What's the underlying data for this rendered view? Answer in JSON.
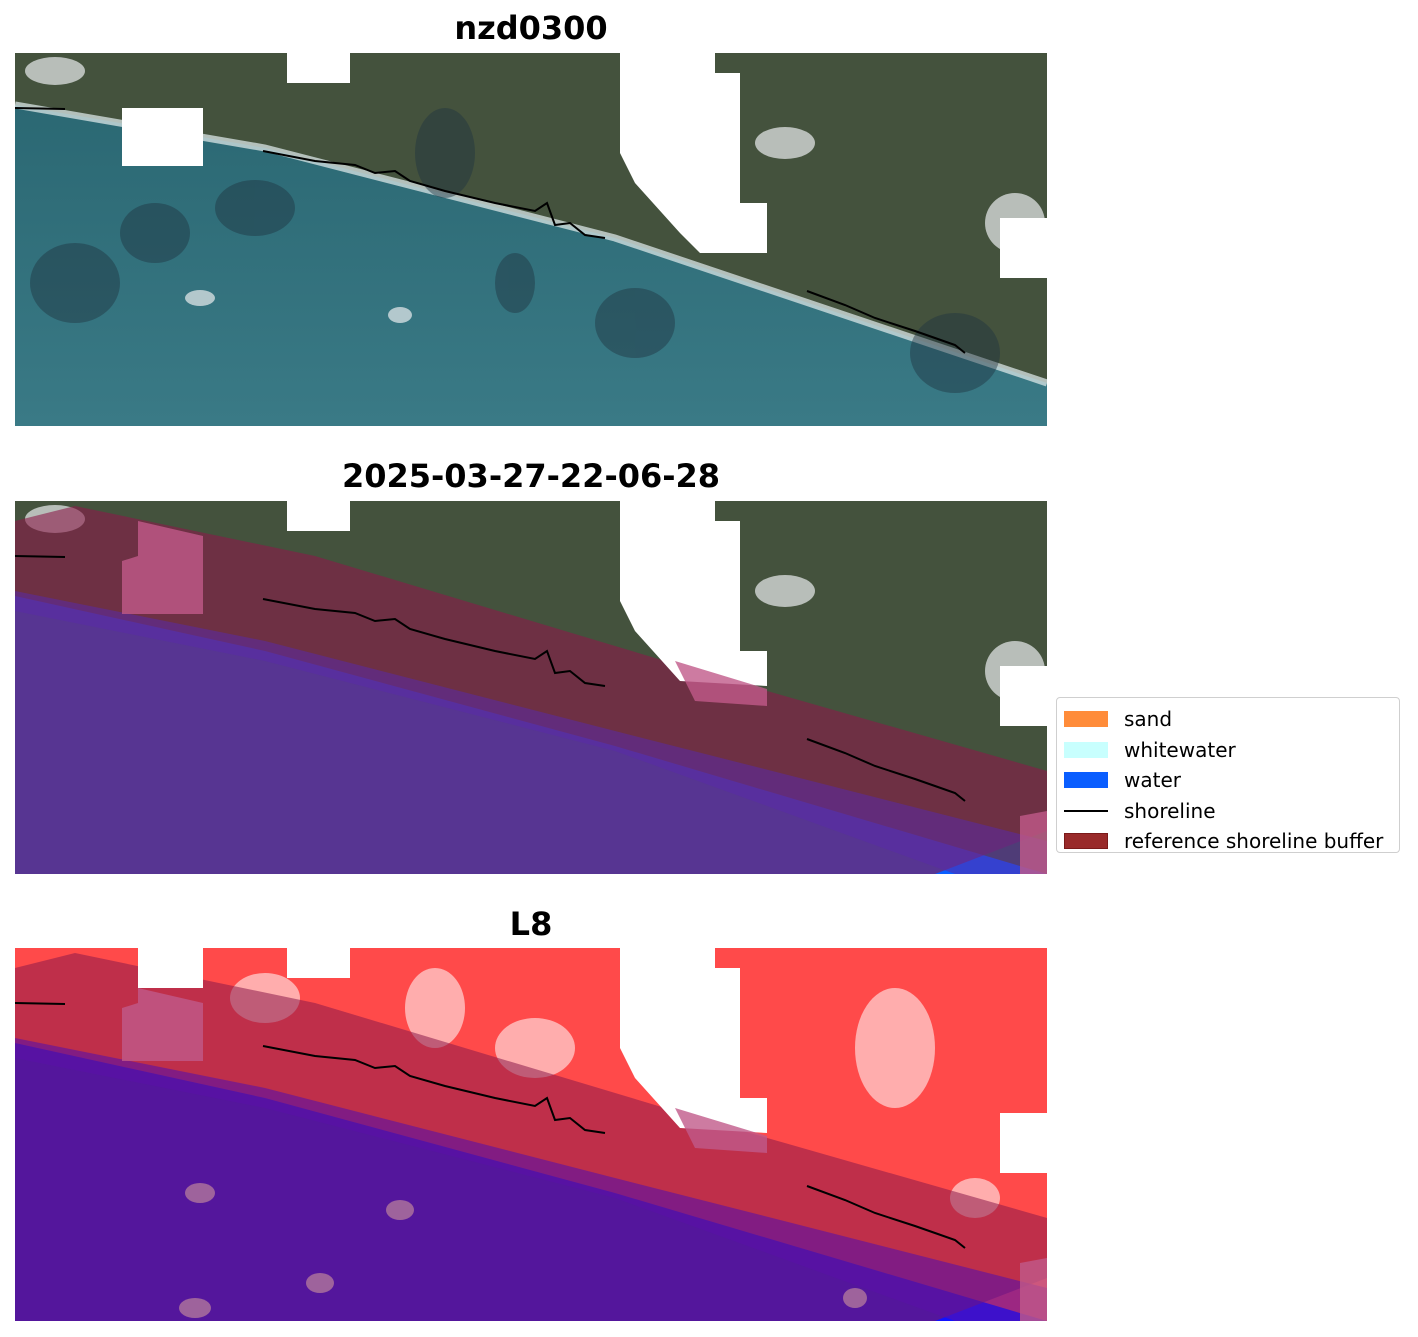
{
  "panels": [
    {
      "title": "nzd0300",
      "kind": "rgb"
    },
    {
      "title": "2025-03-27-22-06-28",
      "kind": "classified"
    },
    {
      "title": "L8",
      "kind": "index"
    }
  ],
  "legend": {
    "items": [
      {
        "label": "sand",
        "color": "#ff8c3a",
        "type": "patch"
      },
      {
        "label": "whitewater",
        "color": "#c8fffe",
        "type": "patch"
      },
      {
        "label": "water",
        "color": "#0a5eff",
        "type": "patch"
      },
      {
        "label": "shoreline",
        "color": "#000000",
        "type": "line"
      },
      {
        "label": "reference shoreline buffer",
        "color": "#992a2a",
        "type": "patch"
      }
    ]
  },
  "colors": {
    "land": "#3f4e3a",
    "sea": "#2f6a74",
    "cloud_mask": "#ffffff",
    "water_class": "#0a5eff",
    "buffer_overlay": "#8b1a4a",
    "index_land": "#ff4747",
    "index_water": "#1010ff"
  }
}
